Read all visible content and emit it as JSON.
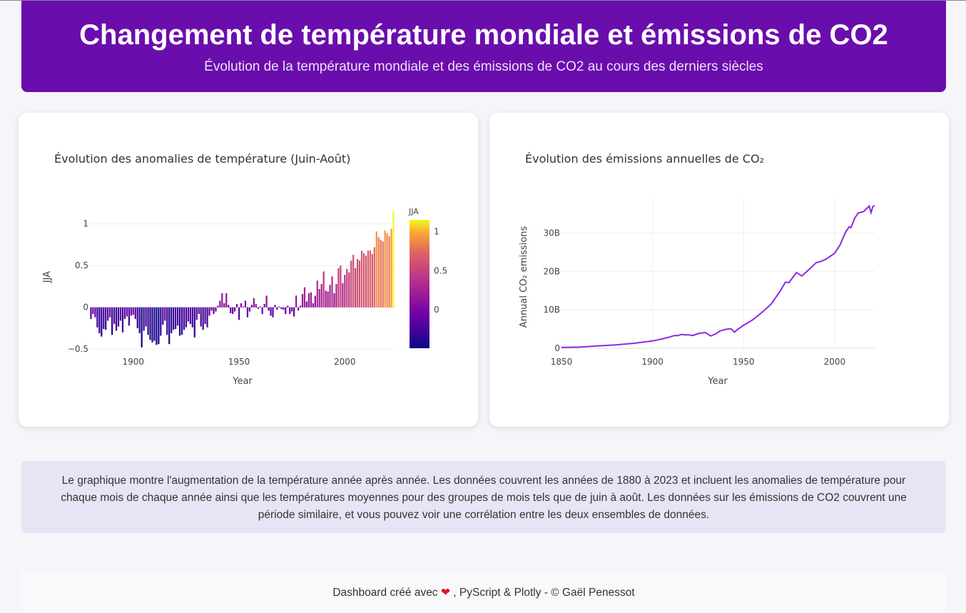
{
  "header": {
    "title": "Changement de température mondiale et émissions de CO2",
    "subtitle": "Évolution de la température mondiale et des émissions de CO2 au cours des derniers siècles"
  },
  "info_text": "Le graphique montre l'augmentation de la température année après année. Les données couvrent les années de 1880 à 2023 et incluent les anomalies de température pour chaque mois de chaque année ainsi que les températures moyennes pour des groupes de mois tels que de juin à août. Les données sur les émissions de CO2 couvrent une période similaire, et vous pouvez voir une corrélation entre les deux ensembles de données.",
  "footer": {
    "before": "Dashboard créé avec ",
    "heart": "❤",
    "after": " , PyScript & Plotly - © Gaël Penessot"
  },
  "colors": {
    "header_bg": "#6a0dad",
    "co2_line": "#8a2be2"
  },
  "chart_data": [
    {
      "type": "bar",
      "title": "Évolution des anomalies de température (Juin-Août)",
      "xlabel": "Year",
      "ylabel": "JJA",
      "colorbar_title": "JJA",
      "colorscale": "plasma",
      "xlim": [
        1879.5,
        2023.5
      ],
      "ylim": [
        -0.55,
        1.22
      ],
      "xticks": [
        {
          "v": 1900,
          "label": "1900"
        },
        {
          "v": 1950,
          "label": "1950"
        },
        {
          "v": 2000,
          "label": "2000"
        }
      ],
      "yticks": [
        {
          "v": -0.5,
          "label": "−0.5"
        },
        {
          "v": 0,
          "label": "0"
        },
        {
          "v": 0.5,
          "label": "0.5"
        },
        {
          "v": 1,
          "label": "1"
        }
      ],
      "colorbar_range": [
        -0.49,
        1.15
      ],
      "colorbar_ticks": [
        {
          "v": 0,
          "label": "0"
        },
        {
          "v": 0.5,
          "label": "0.5"
        },
        {
          "v": 1,
          "label": "1"
        }
      ],
      "x_start": 1880,
      "values": [
        -0.14,
        -0.08,
        -0.12,
        -0.24,
        -0.31,
        -0.35,
        -0.26,
        -0.27,
        -0.16,
        -0.12,
        -0.33,
        -0.2,
        -0.28,
        -0.23,
        -0.16,
        -0.3,
        -0.14,
        -0.11,
        -0.22,
        -0.1,
        -0.09,
        -0.14,
        -0.25,
        -0.31,
        -0.48,
        -0.28,
        -0.23,
        -0.33,
        -0.39,
        -0.42,
        -0.4,
        -0.45,
        -0.44,
        -0.34,
        -0.21,
        -0.16,
        -0.33,
        -0.44,
        -0.31,
        -0.27,
        -0.26,
        -0.22,
        -0.34,
        -0.33,
        -0.27,
        -0.24,
        -0.17,
        -0.2,
        -0.24,
        -0.36,
        -0.15,
        -0.08,
        -0.23,
        -0.27,
        -0.2,
        -0.24,
        -0.1,
        -0.04,
        -0.08,
        -0.05,
        0.02,
        0.08,
        0.17,
        0.05,
        0.17,
        0.03,
        -0.07,
        -0.08,
        -0.05,
        0.04,
        -0.15,
        0.05,
        0.01,
        0.08,
        -0.12,
        -0.05,
        0.03,
        0.11,
        0.04,
        -0.02,
        0.01,
        -0.08,
        0.04,
        0.14,
        -0.04,
        -0.1,
        -0.12,
        0.03,
        -0.03,
        0.01,
        -0.02,
        -0.03,
        -0.08,
        0.02,
        -0.08,
        -0.05,
        -0.11,
        0.14,
        -0.04,
        0.02,
        0.16,
        0.24,
        0.07,
        0.17,
        0.18,
        0.05,
        0.14,
        0.32,
        0.22,
        0.28,
        0.43,
        0.2,
        0.19,
        0.27,
        0.37,
        0.17,
        0.28,
        0.47,
        0.5,
        0.29,
        0.39,
        0.46,
        0.42,
        0.56,
        0.63,
        0.47,
        0.58,
        0.56,
        0.68,
        0.65,
        0.62,
        0.68,
        0.68,
        0.64,
        0.72,
        0.91,
        0.84,
        0.81,
        0.79,
        0.92,
        0.89,
        0.85,
        0.94,
        1.15
      ]
    },
    {
      "type": "line",
      "title": "Évolution des émissions annuelles de CO₂",
      "xlabel": "Year",
      "ylabel": "Annual CO₂ emissions",
      "xlim": [
        1850,
        2022
      ],
      "ylim": [
        0,
        39000000000
      ],
      "xticks": [
        {
          "v": 1850,
          "label": "1850"
        },
        {
          "v": 1900,
          "label": "1900"
        },
        {
          "v": 1950,
          "label": "1950"
        },
        {
          "v": 2000,
          "label": "2000"
        }
      ],
      "yticks": [
        {
          "v": 0,
          "label": "0"
        },
        {
          "v": 10000000000,
          "label": "10B"
        },
        {
          "v": 20000000000,
          "label": "20B"
        },
        {
          "v": 30000000000,
          "label": "30B"
        }
      ],
      "x": [
        1850,
        1860,
        1870,
        1880,
        1890,
        1900,
        1905,
        1910,
        1912,
        1914,
        1916,
        1918,
        1920,
        1922,
        1925,
        1929,
        1932,
        1935,
        1937,
        1940,
        1943,
        1945,
        1946,
        1950,
        1955,
        1960,
        1965,
        1970,
        1973,
        1975,
        1979,
        1982,
        1985,
        1990,
        1992,
        1995,
        2000,
        2003,
        2006,
        2008,
        2009,
        2011,
        2013,
        2016,
        2019,
        2020,
        2021,
        2022
      ],
      "values": [
        200000000,
        300000000,
        600000000,
        900000000,
        1300000000,
        1900000000,
        2400000000,
        3000000000,
        3300000000,
        3300000000,
        3600000000,
        3500000000,
        3500000000,
        3300000000,
        3800000000,
        4100000000,
        3200000000,
        3800000000,
        4500000000,
        4900000000,
        5100000000,
        4200000000,
        4600000000,
        6000000000,
        7400000000,
        9300000000,
        11400000000,
        14800000000,
        17200000000,
        17100000000,
        19700000000,
        18800000000,
        20100000000,
        22300000000,
        22500000000,
        23100000000,
        24700000000,
        26900000000,
        30200000000,
        31600000000,
        31400000000,
        33800000000,
        35200000000,
        35600000000,
        37000000000,
        35300000000,
        36900000000,
        37100000000
      ]
    }
  ]
}
